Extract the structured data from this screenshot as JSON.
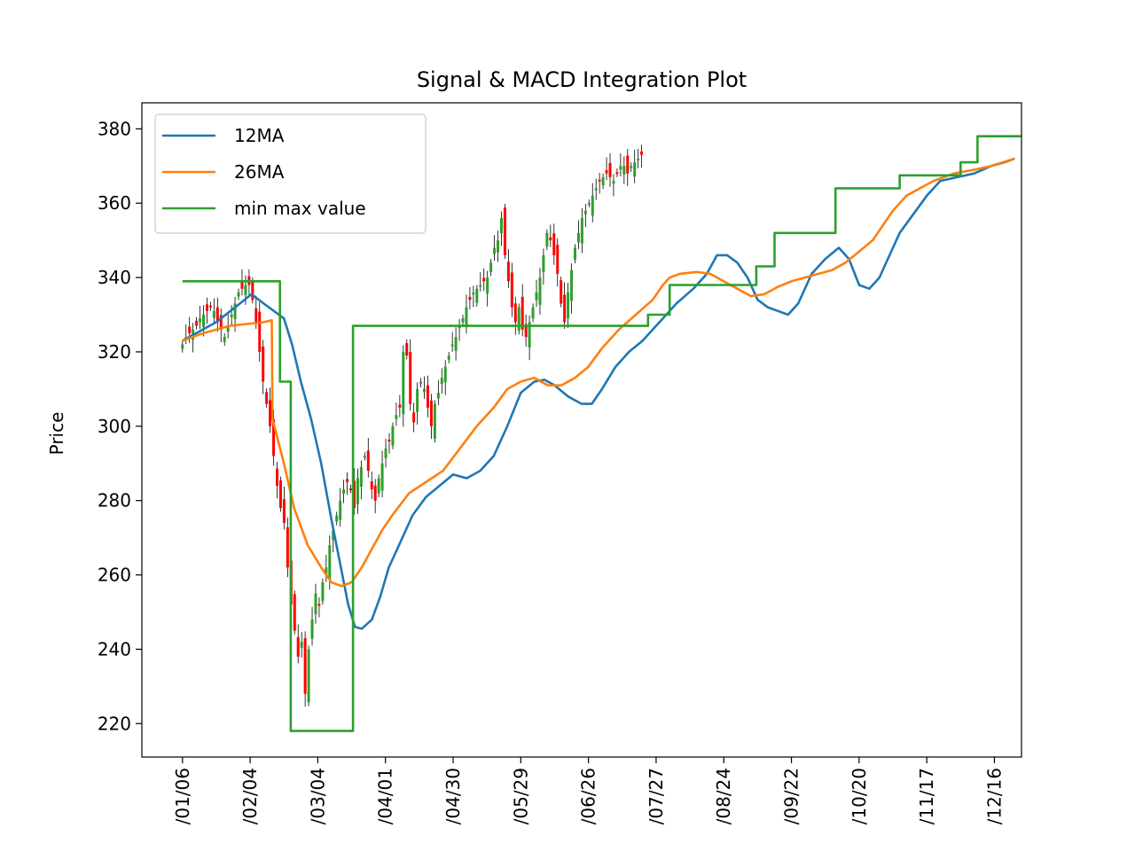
{
  "chart_data": {
    "type": "line",
    "title": "Signal & MACD Integration Plot",
    "xlabel": "",
    "ylabel": "Price",
    "ylim": [
      211,
      387
    ],
    "yticks": [
      220,
      240,
      260,
      280,
      300,
      320,
      340,
      360,
      380
    ],
    "xticks": [
      "/01/06",
      "/02/04",
      "/03/04",
      "/04/01",
      "/04/30",
      "/05/29",
      "/06/26",
      "/07/27",
      "/08/24",
      "/09/22",
      "/10/20",
      "/11/17",
      "/12/16"
    ],
    "xlim": [
      -0.6,
      12.4
    ],
    "legend": {
      "placement": "upper-left",
      "entries": [
        "12MA",
        "26MA",
        "min max value"
      ]
    },
    "candle_colors": {
      "up": "#2ca02c",
      "down": "#ff0000"
    },
    "candles": {
      "x_start": 0,
      "x_step": 0.0518,
      "up_color_rule": "alternating",
      "close": [
        322,
        324,
        325,
        326,
        327,
        329,
        330,
        331,
        332,
        331,
        328,
        326,
        324,
        327,
        330,
        333,
        336,
        337,
        338,
        338,
        334,
        328,
        320,
        312,
        306,
        300,
        292,
        284,
        278,
        274,
        262,
        252,
        245,
        238,
        242,
        228,
        240,
        248,
        255,
        252,
        258,
        262,
        268,
        272,
        276,
        280,
        283,
        285,
        283,
        278,
        286,
        289,
        292,
        288,
        283,
        280,
        286,
        290,
        294,
        296,
        300,
        303,
        305,
        320,
        319,
        306,
        301,
        310,
        312,
        310,
        305,
        300,
        306,
        309,
        313,
        316,
        319,
        322,
        324,
        327,
        329,
        332,
        334,
        336,
        337,
        338,
        339,
        340,
        344,
        348,
        350,
        356,
        346,
        339,
        332,
        328,
        332,
        326,
        324,
        328,
        332,
        336,
        340,
        346,
        352,
        350,
        346,
        341,
        333,
        328,
        336,
        342,
        348,
        352,
        356,
        358,
        360,
        362,
        364,
        366,
        367,
        368,
        367,
        366,
        368,
        370,
        370,
        368,
        370,
        371,
        372,
        373
      ]
    },
    "series": [
      {
        "name": "12MA",
        "color": "#1f77b4",
        "points": [
          [
            0,
            323
          ],
          [
            0.5,
            328
          ],
          [
            0.85,
            333
          ],
          [
            1.02,
            335.5
          ],
          [
            1.2,
            333
          ],
          [
            1.5,
            329
          ],
          [
            1.62,
            322
          ],
          [
            1.75,
            312
          ],
          [
            1.9,
            302
          ],
          [
            2.05,
            290
          ],
          [
            2.2,
            275
          ],
          [
            2.45,
            252
          ],
          [
            2.55,
            246
          ],
          [
            2.65,
            245.5
          ],
          [
            2.8,
            248
          ],
          [
            2.92,
            254
          ],
          [
            3.05,
            262
          ],
          [
            3.2,
            268
          ],
          [
            3.4,
            276
          ],
          [
            3.6,
            281
          ],
          [
            3.8,
            284
          ],
          [
            4.0,
            287
          ],
          [
            4.2,
            286
          ],
          [
            4.4,
            288
          ],
          [
            4.6,
            292
          ],
          [
            4.8,
            300
          ],
          [
            5.0,
            309
          ],
          [
            5.2,
            312
          ],
          [
            5.35,
            312.5
          ],
          [
            5.5,
            311
          ],
          [
            5.7,
            308
          ],
          [
            5.9,
            306
          ],
          [
            6.05,
            306
          ],
          [
            6.2,
            310
          ],
          [
            6.4,
            316
          ],
          [
            6.6,
            320
          ],
          [
            6.8,
            323
          ],
          [
            6.95,
            326
          ],
          [
            7.1,
            329
          ],
          [
            7.3,
            333
          ],
          [
            7.55,
            337
          ],
          [
            7.75,
            341
          ],
          [
            7.9,
            346
          ],
          [
            8.05,
            346
          ],
          [
            8.2,
            344
          ],
          [
            8.35,
            340
          ],
          [
            8.5,
            334
          ],
          [
            8.65,
            332
          ],
          [
            8.8,
            331
          ],
          [
            8.95,
            330
          ],
          [
            9.1,
            333
          ],
          [
            9.3,
            341
          ],
          [
            9.5,
            345
          ],
          [
            9.7,
            348
          ],
          [
            9.85,
            345
          ],
          [
            10.0,
            338
          ],
          [
            10.15,
            337
          ],
          [
            10.3,
            340
          ],
          [
            10.45,
            346
          ],
          [
            10.6,
            352
          ],
          [
            10.8,
            357
          ],
          [
            11.0,
            362
          ],
          [
            11.2,
            366
          ],
          [
            11.45,
            367
          ],
          [
            11.7,
            368
          ],
          [
            11.95,
            370
          ],
          [
            12.15,
            371
          ],
          [
            12.3,
            372
          ]
        ]
      },
      {
        "name": "26MA",
        "color": "#ff7f0e",
        "points": [
          [
            0,
            323
          ],
          [
            0.3,
            325
          ],
          [
            0.7,
            327
          ],
          [
            0.95,
            327.5
          ],
          [
            1.2,
            328
          ],
          [
            1.32,
            328.5
          ],
          [
            1.33,
            302
          ],
          [
            1.5,
            290
          ],
          [
            1.65,
            278
          ],
          [
            1.85,
            268
          ],
          [
            2.05,
            262
          ],
          [
            2.2,
            258
          ],
          [
            2.35,
            257
          ],
          [
            2.5,
            258
          ],
          [
            2.65,
            262
          ],
          [
            2.8,
            267
          ],
          [
            2.95,
            272
          ],
          [
            3.1,
            276
          ],
          [
            3.35,
            282
          ],
          [
            3.6,
            285
          ],
          [
            3.85,
            288
          ],
          [
            4.1,
            294
          ],
          [
            4.35,
            300
          ],
          [
            4.6,
            305
          ],
          [
            4.8,
            310
          ],
          [
            5.0,
            312
          ],
          [
            5.2,
            313
          ],
          [
            5.4,
            311
          ],
          [
            5.6,
            311
          ],
          [
            5.8,
            313
          ],
          [
            6.0,
            316
          ],
          [
            6.2,
            321
          ],
          [
            6.45,
            326
          ],
          [
            6.7,
            330
          ],
          [
            6.95,
            334
          ],
          [
            7.1,
            338
          ],
          [
            7.2,
            340
          ],
          [
            7.35,
            341
          ],
          [
            7.6,
            341.5
          ],
          [
            7.8,
            341
          ],
          [
            8.0,
            339
          ],
          [
            8.2,
            337
          ],
          [
            8.4,
            335
          ],
          [
            8.6,
            335.5
          ],
          [
            8.8,
            337.5
          ],
          [
            9.0,
            339
          ],
          [
            9.2,
            340
          ],
          [
            9.4,
            341
          ],
          [
            9.6,
            342
          ],
          [
            9.8,
            344
          ],
          [
            10.0,
            347
          ],
          [
            10.2,
            350
          ],
          [
            10.35,
            354
          ],
          [
            10.5,
            358
          ],
          [
            10.7,
            362
          ],
          [
            10.9,
            364
          ],
          [
            11.1,
            366
          ],
          [
            11.4,
            368
          ],
          [
            11.7,
            369
          ],
          [
            11.95,
            370
          ],
          [
            12.3,
            372
          ]
        ]
      },
      {
        "name": "min max value",
        "color": "#2ca02c",
        "points": [
          [
            0,
            339
          ],
          [
            1.44,
            339
          ],
          [
            1.44,
            312
          ],
          [
            1.6,
            312
          ],
          [
            1.6,
            218
          ],
          [
            2.52,
            218
          ],
          [
            2.52,
            327
          ],
          [
            6.88,
            327
          ],
          [
            6.88,
            330
          ],
          [
            7.2,
            330
          ],
          [
            7.2,
            338
          ],
          [
            8.48,
            338
          ],
          [
            8.48,
            343
          ],
          [
            8.75,
            343
          ],
          [
            8.75,
            352
          ],
          [
            9.65,
            352
          ],
          [
            9.65,
            364
          ],
          [
            10.6,
            364
          ],
          [
            10.6,
            367.5
          ],
          [
            11.5,
            367.5
          ],
          [
            11.5,
            371
          ],
          [
            11.75,
            371
          ],
          [
            11.75,
            378
          ],
          [
            12.5,
            378
          ]
        ]
      }
    ]
  }
}
